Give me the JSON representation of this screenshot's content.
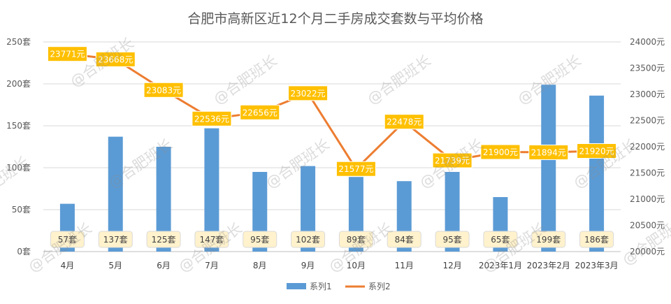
{
  "chart_data": {
    "type": "bar",
    "title": "合肥市高新区近12个月二手房成交套数与平均价格",
    "categories": [
      "4月",
      "5月",
      "6月",
      "7月",
      "8月",
      "9月",
      "10月",
      "11月",
      "12月",
      "2023年1月",
      "2023年2月",
      "2023年3月"
    ],
    "series": [
      {
        "name": "系列1",
        "type": "bar",
        "axis": "left",
        "color": "#5B9BD5",
        "values": [
          57,
          137,
          125,
          147,
          95,
          102,
          89,
          84,
          95,
          65,
          199,
          186
        ],
        "labels": [
          "57套",
          "137套",
          "125套",
          "147套",
          "95套",
          "102套",
          "89套",
          "84套",
          "95套",
          "65套",
          "199套",
          "186套"
        ]
      },
      {
        "name": "系列2",
        "type": "line",
        "axis": "right",
        "color": "#ED7D31",
        "values": [
          23771,
          23668,
          23083,
          22536,
          22656,
          23022,
          21577,
          22478,
          21739,
          21900,
          21894,
          21920
        ],
        "labels": [
          "23771元",
          "23668元",
          "23083元",
          "22536元",
          "22656元",
          "23022元",
          "21577元",
          "22478元",
          "21739元",
          "21900元",
          "21894元",
          "21920元"
        ]
      }
    ],
    "y_left": {
      "range": [
        0,
        250
      ],
      "ticks": [
        0,
        50,
        100,
        150,
        200,
        250
      ],
      "tick_labels": [
        "0套",
        "50套",
        "100套",
        "150套",
        "200套",
        "250套"
      ]
    },
    "y_right": {
      "range": [
        20000,
        24000
      ],
      "ticks": [
        20000,
        20500,
        21000,
        21500,
        22000,
        22500,
        23000,
        23500,
        24000
      ],
      "tick_labels": [
        "20000元",
        "20500元",
        "21000元",
        "21500元",
        "22000元",
        "22500元",
        "23000元",
        "23500元",
        "24000元"
      ]
    },
    "grid": true,
    "legend_position": "bottom",
    "watermark": "@合肥班长"
  }
}
